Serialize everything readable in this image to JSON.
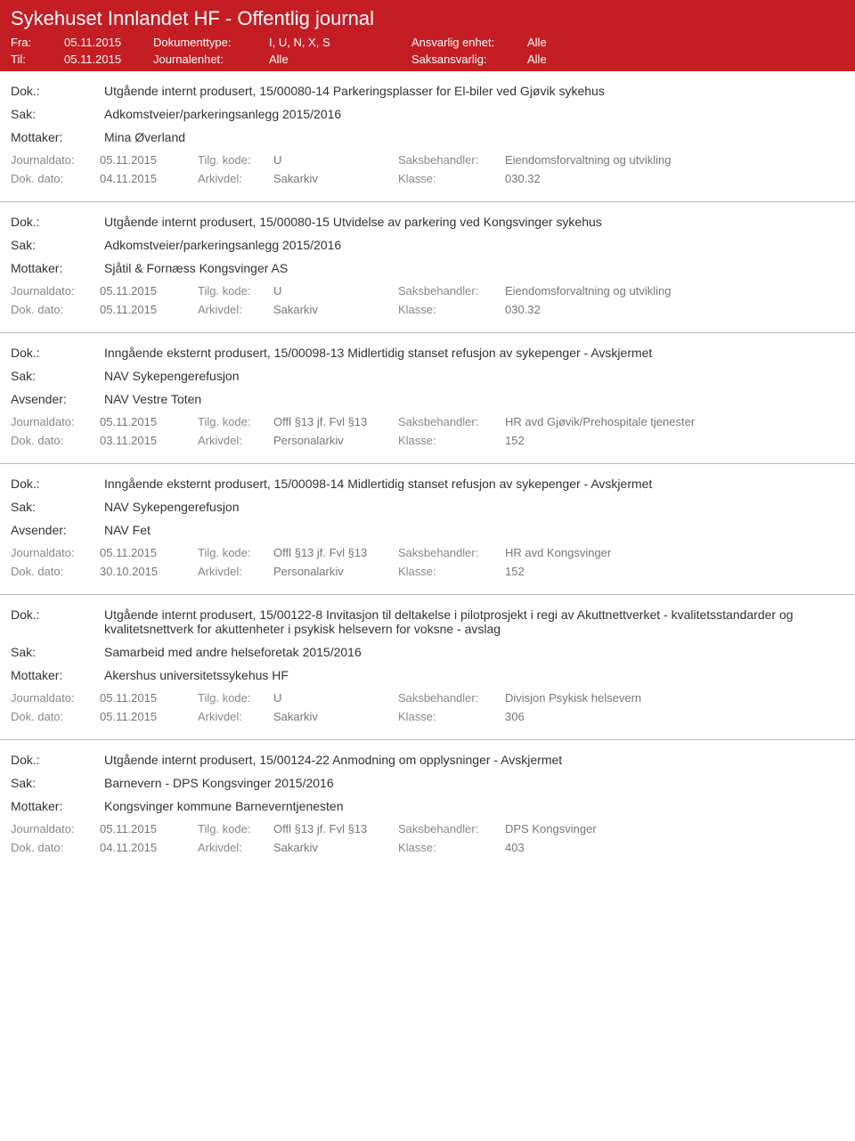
{
  "header": {
    "title": "Sykehuset Innlandet HF - Offentlig journal",
    "fra_label": "Fra:",
    "fra_value": "05.11.2015",
    "til_label": "Til:",
    "til_value": "05.11.2015",
    "doktype_label": "Dokumenttype:",
    "doktype_value": "I, U, N, X, S",
    "journalenhet_label": "Journalenhet:",
    "journalenhet_value": "Alle",
    "ansvarlig_label": "Ansvarlig enhet:",
    "ansvarlig_value": "Alle",
    "saksansvarlig_label": "Saksansvarlig:",
    "saksansvarlig_value": "Alle"
  },
  "labels": {
    "dok": "Dok.:",
    "sak": "Sak:",
    "mottaker": "Mottaker:",
    "avsender": "Avsender:",
    "journaldato": "Journaldato:",
    "dokdato": "Dok. dato:",
    "tilgkode": "Tilg. kode:",
    "arkivdel": "Arkivdel:",
    "saksbehandler": "Saksbehandler:",
    "klasse": "Klasse:"
  },
  "entries": [
    {
      "dok": "Utgående internt produsert, 15/00080-14 Parkeringsplasser for El-biler ved Gjøvik sykehus",
      "sak": "Adkomstveier/parkeringsanlegg 2015/2016",
      "party_label": "Mottaker:",
      "party": "Mina Øverland",
      "journaldato": "05.11.2015",
      "tilgkode": "U",
      "saksbehandler": "Eiendomsforvaltning og utvikling",
      "dokdato": "04.11.2015",
      "arkivdel": "Sakarkiv",
      "klasse": "030.32"
    },
    {
      "dok": "Utgående internt produsert, 15/00080-15 Utvidelse av parkering ved Kongsvinger sykehus",
      "sak": "Adkomstveier/parkeringsanlegg 2015/2016",
      "party_label": "Mottaker:",
      "party": "Sjåtil & Fornæss Kongsvinger AS",
      "journaldato": "05.11.2015",
      "tilgkode": "U",
      "saksbehandler": "Eiendomsforvaltning og utvikling",
      "dokdato": "05.11.2015",
      "arkivdel": "Sakarkiv",
      "klasse": "030.32"
    },
    {
      "dok": "Inngående eksternt produsert, 15/00098-13 Midlertidig stanset refusjon av sykepenger - Avskjermet",
      "sak": "NAV Sykepengerefusjon",
      "party_label": "Avsender:",
      "party": "NAV Vestre Toten",
      "journaldato": "05.11.2015",
      "tilgkode": "Offl §13 jf. Fvl §13",
      "saksbehandler": "HR avd Gjøvik/Prehospitale tjenester",
      "dokdato": "03.11.2015",
      "arkivdel": "Personalarkiv",
      "klasse": "152"
    },
    {
      "dok": "Inngående eksternt produsert, 15/00098-14 Midlertidig stanset refusjon av sykepenger - Avskjermet",
      "sak": "NAV Sykepengerefusjon",
      "party_label": "Avsender:",
      "party": "NAV Fet",
      "journaldato": "05.11.2015",
      "tilgkode": "Offl §13 jf. Fvl §13",
      "saksbehandler": "HR avd Kongsvinger",
      "dokdato": "30.10.2015",
      "arkivdel": "Personalarkiv",
      "klasse": "152"
    },
    {
      "dok": "Utgående internt produsert, 15/00122-8 Invitasjon til deltakelse i pilotprosjekt i regi av Akuttnettverket - kvalitetsstandarder og kvalitetsnettverk for akuttenheter i psykisk helsevern for voksne - avslag",
      "sak": "Samarbeid med andre helseforetak 2015/2016",
      "party_label": "Mottaker:",
      "party": "Akershus universitetssykehus HF",
      "journaldato": "05.11.2015",
      "tilgkode": "U",
      "saksbehandler": "Divisjon Psykisk helsevern",
      "dokdato": "05.11.2015",
      "arkivdel": "Sakarkiv",
      "klasse": "306"
    },
    {
      "dok": "Utgående internt produsert, 15/00124-22 Anmodning om opplysninger - Avskjermet",
      "sak": "Barnevern - DPS Kongsvinger 2015/2016",
      "party_label": "Mottaker:",
      "party": "Kongsvinger kommune Barneverntjenesten",
      "journaldato": "05.11.2015",
      "tilgkode": "Offl §13 jf. Fvl §13",
      "saksbehandler": "DPS Kongsvinger",
      "dokdato": "04.11.2015",
      "arkivdel": "Sakarkiv",
      "klasse": "403"
    }
  ]
}
